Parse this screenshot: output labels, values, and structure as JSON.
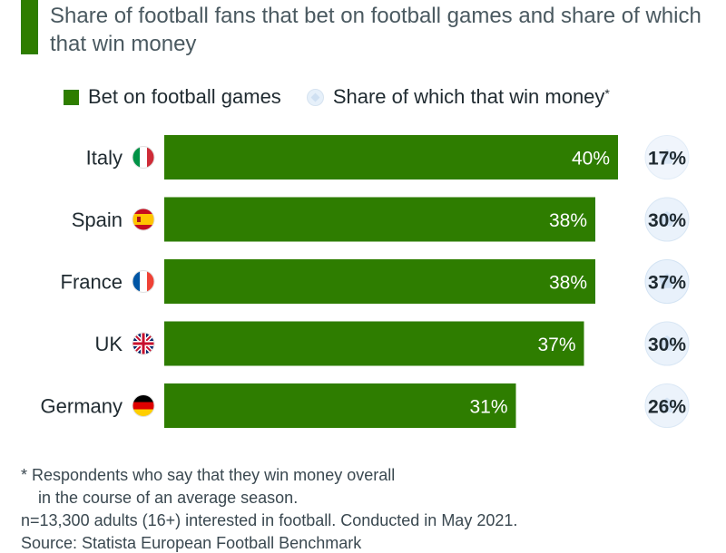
{
  "header": {
    "subtitle": "Share of football fans that bet on football games and share of which that win money"
  },
  "legend": {
    "bet_label": "Bet on football games",
    "win_label": "Share of which that win money",
    "win_marker": "*"
  },
  "chart_data": {
    "type": "bar",
    "orientation": "horizontal",
    "categories": [
      "Italy",
      "Spain",
      "France",
      "UK",
      "Germany"
    ],
    "series": [
      {
        "name": "Bet on football games",
        "values": [
          40,
          38,
          38,
          37,
          31
        ],
        "labels": [
          "40%",
          "38%",
          "38%",
          "37%",
          "31%"
        ],
        "color": "#2e7d00"
      },
      {
        "name": "Share of which that win money",
        "values": [
          17,
          30,
          37,
          30,
          26
        ],
        "labels": [
          "17%",
          "30%",
          "37%",
          "30%",
          "26%"
        ],
        "color": "#cfe0f2"
      }
    ],
    "xlim": [
      0,
      40
    ],
    "grid": false,
    "legend_position": "top"
  },
  "flags": {
    "Italy": "flag-italy",
    "Spain": "flag-spain",
    "France": "flag-france",
    "UK": "flag-uk",
    "Germany": "flag-germany"
  },
  "footnotes": {
    "note1": "* Respondents who say that they win money overall",
    "note2": "in the course of an average season.",
    "note3": "n=13,300 adults (16+) interested in football. Conducted in May 2021.",
    "source": "Source: Statista European Football Benchmark"
  },
  "colors": {
    "accent": "#2e7d00",
    "bar_text": "#ffffff",
    "ball": "#cfe0f2"
  }
}
